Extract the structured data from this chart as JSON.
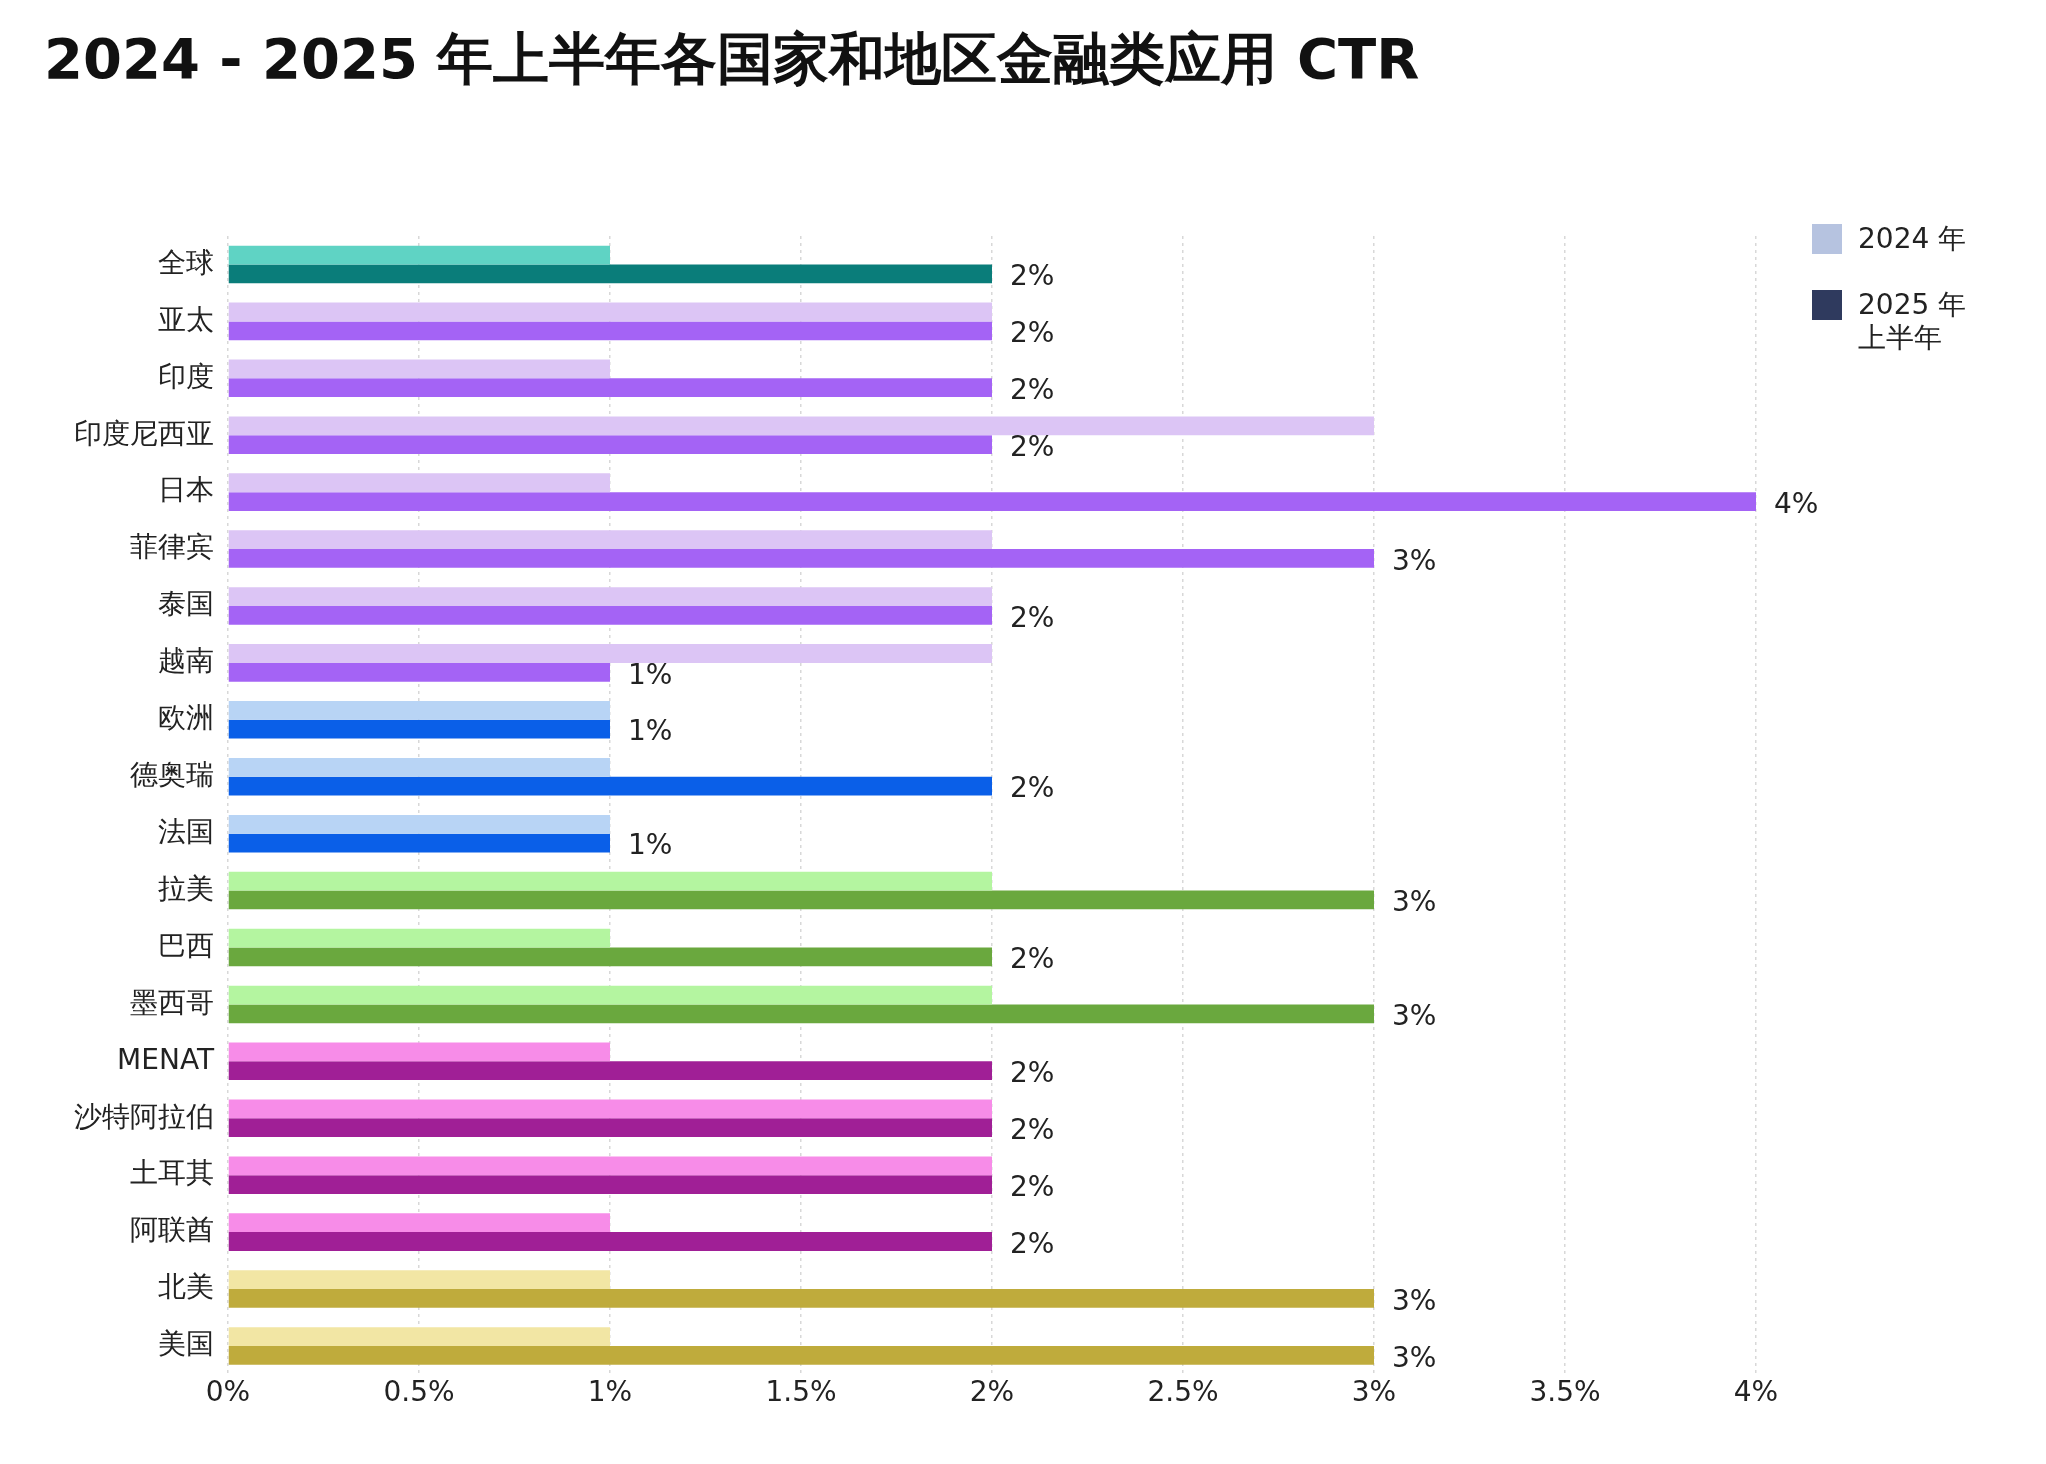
{
  "chart_data": {
    "type": "bar",
    "orientation": "horizontal",
    "title": "2024 - 2025 年上半年各国家和地区金融类应用 CTR",
    "categories": [
      "全球",
      "亚太",
      "印度",
      "印度尼西亚",
      "日本",
      "菲律宾",
      "泰国",
      "越南",
      "欧洲",
      "德奥瑞",
      "法国",
      "拉美",
      "巴西",
      "墨西哥",
      "MENAT",
      "沙特阿拉伯",
      "土耳其",
      "阿联酋",
      "北美",
      "美国"
    ],
    "series": [
      {
        "name": "2024 年",
        "color": "#b6c3e0",
        "colors": [
          "#5fd3c4",
          "#dcc5f5",
          "#dcc5f5",
          "#dcc5f5",
          "#dcc5f5",
          "#dcc5f5",
          "#dcc5f5",
          "#dcc5f5",
          "#b8d4f5",
          "#b8d4f5",
          "#b8d4f5",
          "#b4f5a0",
          "#b4f5a0",
          "#b4f5a0",
          "#f78ce8",
          "#f78ce8",
          "#f78ce8",
          "#f78ce8",
          "#f2e6a4",
          "#f2e6a4"
        ],
        "values": [
          1,
          2,
          1,
          3,
          1,
          2,
          2,
          2,
          1,
          1,
          1,
          2,
          1,
          2,
          1,
          2,
          2,
          1,
          1,
          1
        ]
      },
      {
        "name": "2025 年上半年",
        "color": "#2f3a5e",
        "colors": [
          "#0a7d7a",
          "#a463f5",
          "#a463f5",
          "#a463f5",
          "#a463f5",
          "#a463f5",
          "#a463f5",
          "#a463f5",
          "#0a5fe8",
          "#0a5fe8",
          "#0a5fe8",
          "#6aa83e",
          "#6aa83e",
          "#6aa83e",
          "#a01f96",
          "#a01f96",
          "#a01f96",
          "#a01f96",
          "#bfab3c",
          "#bfab3c"
        ],
        "values": [
          2,
          2,
          2,
          2,
          4,
          3,
          2,
          1,
          1,
          2,
          1,
          3,
          2,
          3,
          2,
          2,
          2,
          2,
          3,
          3
        ],
        "value_labels": [
          "2%",
          "2%",
          "2%",
          "2%",
          "4%",
          "3%",
          "2%",
          "1%",
          "1%",
          "2%",
          "1%",
          "3%",
          "2%",
          "3%",
          "2%",
          "2%",
          "2%",
          "2%",
          "3%",
          "3%"
        ]
      }
    ],
    "xlim": [
      0,
      4
    ],
    "xticks": [
      {
        "value": 0,
        "label": "0%"
      },
      {
        "value": 0.5,
        "label": "0.5%"
      },
      {
        "value": 1,
        "label": "1%"
      },
      {
        "value": 1.5,
        "label": "1.5%"
      },
      {
        "value": 2,
        "label": "2%"
      },
      {
        "value": 2.5,
        "label": "2.5%"
      },
      {
        "value": 3,
        "label": "3%"
      },
      {
        "value": 3.5,
        "label": "3.5%"
      },
      {
        "value": 4,
        "label": "4%"
      }
    ],
    "grid": "x",
    "legend": "top right"
  }
}
